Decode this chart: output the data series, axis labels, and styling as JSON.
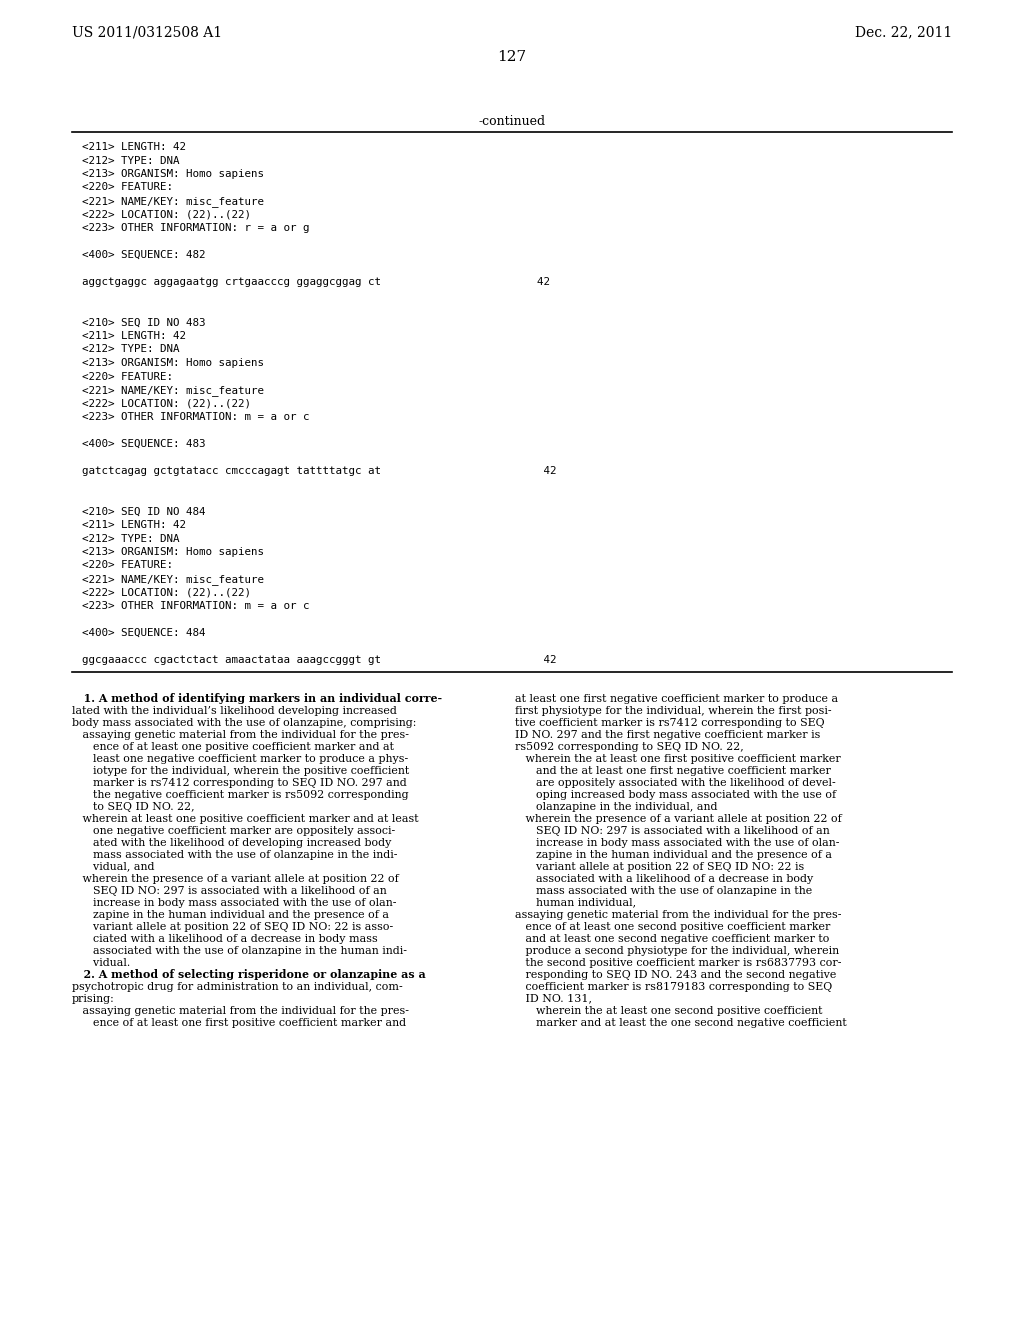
{
  "bg_color": "#ffffff",
  "header_left": "US 2011/0312508 A1",
  "header_right": "Dec. 22, 2011",
  "page_number": "127",
  "continued_label": "-continued",
  "monospace_lines": [
    "<211> LENGTH: 42",
    "<212> TYPE: DNA",
    "<213> ORGANISM: Homo sapiens",
    "<220> FEATURE:",
    "<221> NAME/KEY: misc_feature",
    "<222> LOCATION: (22)..(22)",
    "<223> OTHER INFORMATION: r = a or g",
    "",
    "<400> SEQUENCE: 482",
    "",
    "aggctgaggc aggagaatgg crtgaacccg ggaggcggag ct                        42",
    "",
    "",
    "<210> SEQ ID NO 483",
    "<211> LENGTH: 42",
    "<212> TYPE: DNA",
    "<213> ORGANISM: Homo sapiens",
    "<220> FEATURE:",
    "<221> NAME/KEY: misc_feature",
    "<222> LOCATION: (22)..(22)",
    "<223> OTHER INFORMATION: m = a or c",
    "",
    "<400> SEQUENCE: 483",
    "",
    "gatctcagag gctgtatacc cmcccagagt tattttatgc at                         42",
    "",
    "",
    "<210> SEQ ID NO 484",
    "<211> LENGTH: 42",
    "<212> TYPE: DNA",
    "<213> ORGANISM: Homo sapiens",
    "<220> FEATURE:",
    "<221> NAME/KEY: misc_feature",
    "<222> LOCATION: (22)..(22)",
    "<223> OTHER INFORMATION: m = a or c",
    "",
    "<400> SEQUENCE: 484",
    "",
    "ggcgaaaccc cgactctact amaactataa aaagccgggt gt                         42"
  ],
  "left_col": [
    {
      "t": "   1. A method of identifying markers in an individual corre-",
      "b": true
    },
    {
      "t": "lated with the individual’s likelihood developing increased",
      "b": false
    },
    {
      "t": "body mass associated with the use of olanzapine, comprising:",
      "b": false
    },
    {
      "t": "   assaying genetic material from the individual for the pres-",
      "b": false
    },
    {
      "t": "      ence of at least one positive coefficient marker and at",
      "b": false
    },
    {
      "t": "      least one negative coefficient marker to produce a phys-",
      "b": false
    },
    {
      "t": "      iotype for the individual, wherein the positive coefficient",
      "b": false
    },
    {
      "t": "      marker is rs7412 corresponding to SEQ ID NO. 297 and",
      "b": false
    },
    {
      "t": "      the negative coefficient marker is rs5092 corresponding",
      "b": false
    },
    {
      "t": "      to SEQ ID NO. 22,",
      "b": false
    },
    {
      "t": "   wherein at least one positive coefficient marker and at least",
      "b": false
    },
    {
      "t": "      one negative coefficient marker are oppositely associ-",
      "b": false
    },
    {
      "t": "      ated with the likelihood of developing increased body",
      "b": false
    },
    {
      "t": "      mass associated with the use of olanzapine in the indi-",
      "b": false
    },
    {
      "t": "      vidual, and",
      "b": false
    },
    {
      "t": "   wherein the presence of a variant allele at position 22 of",
      "b": false
    },
    {
      "t": "      SEQ ID NO: 297 is associated with a likelihood of an",
      "b": false
    },
    {
      "t": "      increase in body mass associated with the use of olan-",
      "b": false
    },
    {
      "t": "      zapine in the human individual and the presence of a",
      "b": false
    },
    {
      "t": "      variant allele at position 22 of SEQ ID NO: 22 is asso-",
      "b": false
    },
    {
      "t": "      ciated with a likelihood of a decrease in body mass",
      "b": false
    },
    {
      "t": "      associated with the use of olanzapine in the human indi-",
      "b": false
    },
    {
      "t": "      vidual.",
      "b": false
    },
    {
      "t": "   2. A method of selecting risperidone or olanzapine as a",
      "b": true
    },
    {
      "t": "psychotropic drug for administration to an individual, com-",
      "b": false
    },
    {
      "t": "prising:",
      "b": false
    },
    {
      "t": "   assaying genetic material from the individual for the pres-",
      "b": false
    },
    {
      "t": "      ence of at least one first positive coefficient marker and",
      "b": false
    }
  ],
  "right_col": [
    {
      "t": "at least one first negative coefficient marker to produce a",
      "b": false
    },
    {
      "t": "first physiotype for the individual, wherein the first posi-",
      "b": false
    },
    {
      "t": "tive coefficient marker is rs7412 corresponding to SEQ",
      "b": false
    },
    {
      "t": "ID NO. 297 and the first negative coefficient marker is",
      "b": false
    },
    {
      "t": "rs5092 corresponding to SEQ ID NO. 22,",
      "b": false
    },
    {
      "t": "   wherein the at least one first positive coefficient marker",
      "b": false
    },
    {
      "t": "      and the at least one first negative coefficient marker",
      "b": false
    },
    {
      "t": "      are oppositely associated with the likelihood of devel-",
      "b": false
    },
    {
      "t": "      oping increased body mass associated with the use of",
      "b": false
    },
    {
      "t": "      olanzapine in the individual, and",
      "b": false
    },
    {
      "t": "   wherein the presence of a variant allele at position 22 of",
      "b": false
    },
    {
      "t": "      SEQ ID NO: 297 is associated with a likelihood of an",
      "b": false
    },
    {
      "t": "      increase in body mass associated with the use of olan-",
      "b": false
    },
    {
      "t": "      zapine in the human individual and the presence of a",
      "b": false
    },
    {
      "t": "      variant allele at position 22 of SEQ ID NO: 22 is",
      "b": false
    },
    {
      "t": "      associated with a likelihood of a decrease in body",
      "b": false
    },
    {
      "t": "      mass associated with the use of olanzapine in the",
      "b": false
    },
    {
      "t": "      human individual,",
      "b": false
    },
    {
      "t": "assaying genetic material from the individual for the pres-",
      "b": false
    },
    {
      "t": "   ence of at least one second positive coefficient marker",
      "b": false
    },
    {
      "t": "   and at least one second negative coefficient marker to",
      "b": false
    },
    {
      "t": "   produce a second physiotype for the individual, wherein",
      "b": false
    },
    {
      "t": "   the second positive coefficient marker is rs6837793 cor-",
      "b": false
    },
    {
      "t": "   responding to SEQ ID NO. 243 and the second negative",
      "b": false
    },
    {
      "t": "   coefficient marker is rs8179183 corresponding to SEQ",
      "b": false
    },
    {
      "t": "   ID NO. 131,",
      "b": false
    },
    {
      "t": "      wherein the at least one second positive coefficient",
      "b": false
    },
    {
      "t": "      marker and at least the one second negative coefficient",
      "b": false
    }
  ]
}
